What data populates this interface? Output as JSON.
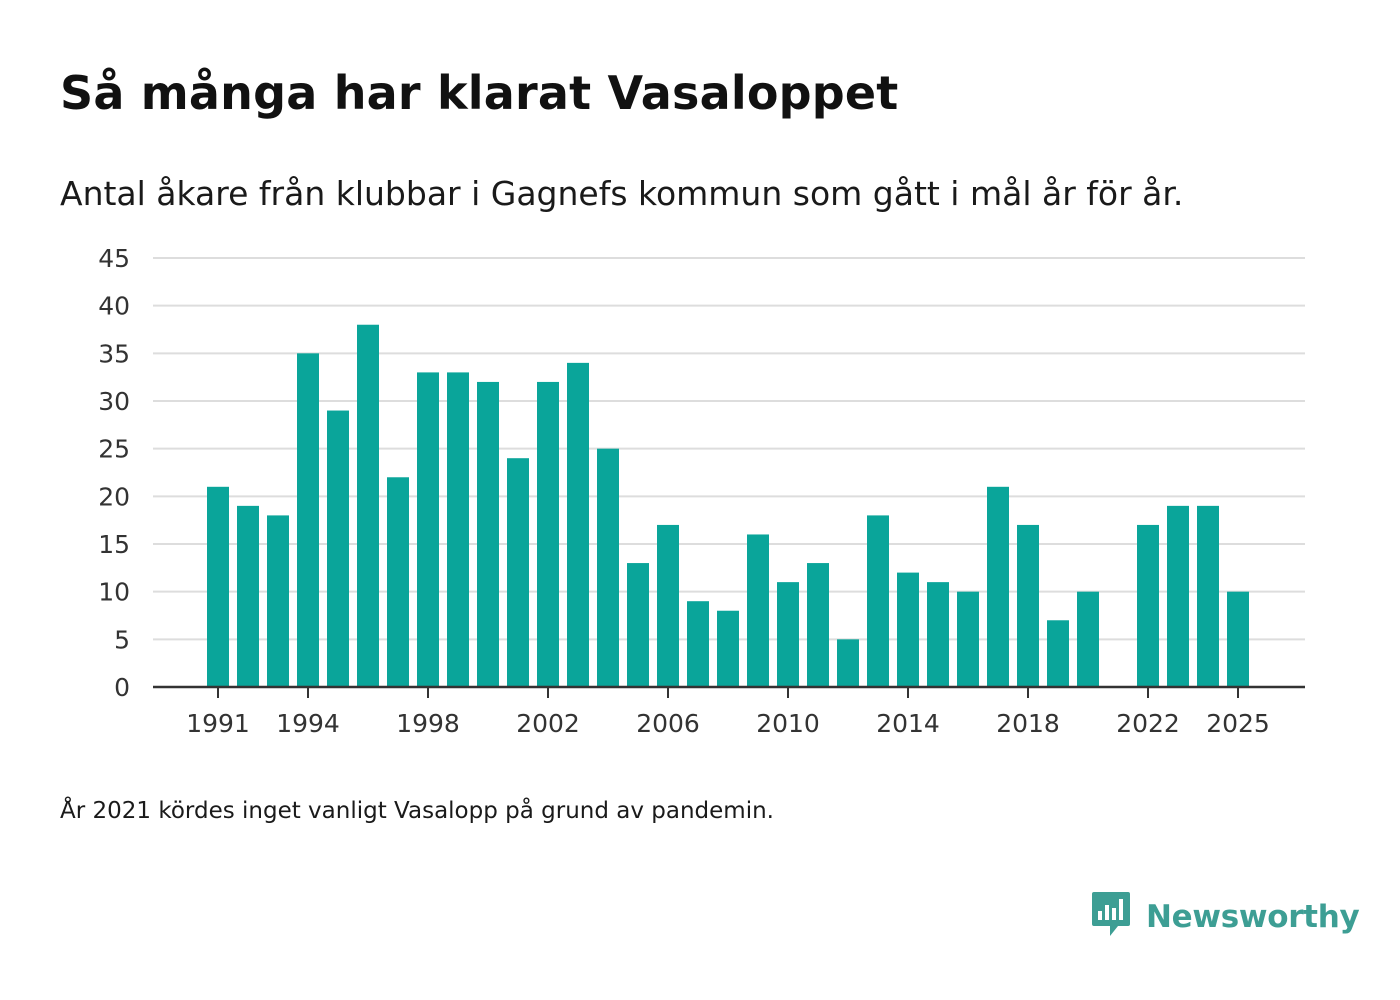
{
  "title": "Så många har klarat Vasaloppet",
  "subtitle": "Antal åkare från klubbar i Gagnefs kommun som gått i mål år för år.",
  "note": "År 2021 kördes inget vanligt Vasalopp på grund av pandemin.",
  "brand": {
    "name": "Newsworthy",
    "icon": "newsworthy-logo-icon",
    "color": "#3d9e94"
  },
  "colors": {
    "bar": "#0aa59a",
    "grid": "#dddddd",
    "axis": "#333333"
  },
  "chart_data": {
    "type": "bar",
    "title": "Så många har klarat Vasaloppet",
    "xlabel": "",
    "ylabel": "",
    "x": [
      1991,
      1992,
      1993,
      1994,
      1995,
      1996,
      1997,
      1998,
      1999,
      2000,
      2001,
      2002,
      2003,
      2004,
      2005,
      2006,
      2007,
      2008,
      2009,
      2010,
      2011,
      2012,
      2013,
      2014,
      2015,
      2016,
      2017,
      2018,
      2019,
      2020,
      2021,
      2022,
      2023,
      2024,
      2025
    ],
    "values": [
      21,
      19,
      18,
      35,
      29,
      38,
      22,
      33,
      33,
      32,
      24,
      32,
      34,
      25,
      13,
      17,
      9,
      8,
      16,
      11,
      13,
      5,
      18,
      12,
      11,
      10,
      21,
      17,
      7,
      10,
      null,
      17,
      19,
      19,
      10
    ],
    "ylim": [
      0,
      45
    ],
    "yticks": [
      0,
      5,
      10,
      15,
      20,
      25,
      30,
      35,
      40,
      45
    ],
    "xticks": [
      1991,
      1994,
      1998,
      2002,
      2006,
      2010,
      2014,
      2018,
      2022,
      2025
    ],
    "grid": true,
    "legend": "none"
  }
}
